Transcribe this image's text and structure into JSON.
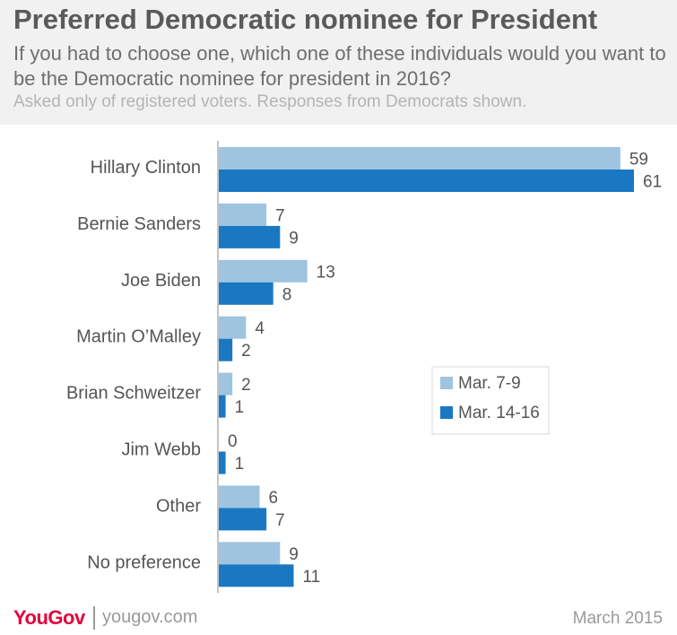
{
  "header": {
    "title": "Preferred Democratic nominee for President",
    "subtitle": "If you had to choose one, which one of these individuals would you want to be the Democratic nominee for president in 2016?",
    "note": "Asked only of registered voters. Responses from Democrats shown."
  },
  "chart_data": {
    "type": "bar",
    "orientation": "horizontal",
    "categories": [
      "Hillary Clinton",
      "Bernie Sanders",
      "Joe Biden",
      "Martin O’Malley",
      "Brian Schweitzer",
      "Jim Webb",
      "Other",
      "No preference"
    ],
    "series": [
      {
        "name": "Mar. 7-9",
        "color": "#9fc4df",
        "values": [
          59,
          7,
          13,
          4,
          2,
          0,
          6,
          9
        ]
      },
      {
        "name": "Mar. 14-16",
        "color": "#1a78c2",
        "values": [
          61,
          9,
          8,
          2,
          1,
          1,
          7,
          11
        ]
      }
    ],
    "xlim": [
      0,
      61
    ],
    "data_labels": true,
    "legend_position": "center-right",
    "grid": false
  },
  "footer": {
    "brand": "YouGov",
    "site": "yougov.com",
    "date": "March 2015"
  }
}
